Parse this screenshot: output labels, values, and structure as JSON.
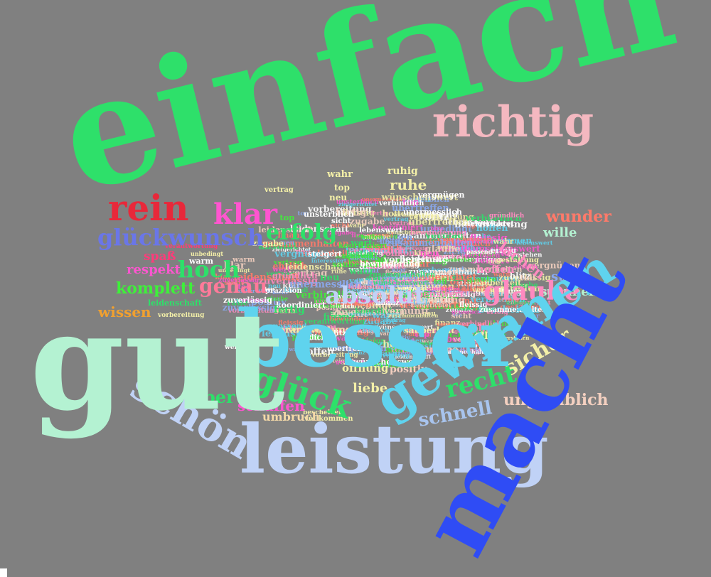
{
  "words": [
    {
      "text": "einfach",
      "color": "#2ee06a"
    },
    {
      "text": "gut",
      "color": "#b4f2d2"
    },
    {
      "text": "macht",
      "color": "#2f4cf5"
    },
    {
      "text": "leistung",
      "color": "#c0d2f6"
    },
    {
      "text": "besser",
      "color": "#5fd3ee"
    },
    {
      "text": "richtig",
      "color": "#f4b8c0"
    },
    {
      "text": "gewinnen",
      "color": "#5fd3ee"
    },
    {
      "text": "schön",
      "color": "#c0d2f6"
    },
    {
      "text": "glück",
      "color": "#2ee06a"
    },
    {
      "text": "rein",
      "color": "#e8283a"
    },
    {
      "text": "glückwunsch",
      "color": "#6a76e8"
    },
    {
      "text": "hoch",
      "color": "#2ee06a"
    },
    {
      "text": "genau",
      "color": "#ff7a9a"
    },
    {
      "text": "komplett",
      "color": "#3ef03a"
    },
    {
      "text": "respekt",
      "color": "#ff55d0"
    },
    {
      "text": "spaß",
      "color": "#ff3b7a"
    },
    {
      "text": "wissen",
      "color": "#f0a030"
    },
    {
      "text": "super",
      "color": "#2ee06a"
    },
    {
      "text": "schaffen",
      "color": "#ff55d0"
    },
    {
      "text": "umbruch",
      "color": "#f4d9a8"
    },
    {
      "text": "liebe",
      "color": "#f4f0a8"
    },
    {
      "text": "recht",
      "color": "#2ee06a"
    },
    {
      "text": "sicher",
      "color": "#f4f0a8"
    },
    {
      "text": "schnell",
      "color": "#a8c4ee"
    },
    {
      "text": "unglaublich",
      "color": "#f4d0c0"
    },
    {
      "text": "wunder",
      "color": "#ff7a6a"
    },
    {
      "text": "wille",
      "color": "#b4f2d2"
    },
    {
      "text": "lachen",
      "color": "#ff8ac0"
    },
    {
      "text": "stark",
      "color": "#8aaaf0"
    },
    {
      "text": "spannend",
      "color": "#b4f2d2"
    },
    {
      "text": "klar",
      "color": "#ff55d0"
    },
    {
      "text": "ruhig",
      "color": "#f4f0a8"
    },
    {
      "text": "ruhe",
      "color": "#f4f0a8"
    },
    {
      "text": "wahr",
      "color": "#f4f0a8"
    },
    {
      "text": "top",
      "color": "#f4f0a8"
    },
    {
      "text": "neu",
      "color": "#f4f0a8"
    },
    {
      "text": "vertrag",
      "color": "#f4f0a8"
    },
    {
      "text": "zuverlässig",
      "color": "#ffffff"
    },
    {
      "text": "leidenschaft",
      "color": "#2ee06a"
    },
    {
      "text": "vorbereitung",
      "color": "#f4f0a8"
    },
    {
      "text": "fertig",
      "color": "#2ee06a"
    },
    {
      "text": "zugabe",
      "color": "#f4f0a8"
    },
    {
      "text": "warm",
      "color": "#ffffff"
    },
    {
      "text": "verantwortung",
      "color": "#ff3b7a"
    },
    {
      "text": "unbedingt",
      "color": "#f4f0a8"
    },
    {
      "text": "öffnung",
      "color": "#f4f0a8"
    },
    {
      "text": "positiv",
      "color": "#f4d0c0"
    },
    {
      "text": "vollkommen",
      "color": "#f4f0a8"
    },
    {
      "text": "sauberkeit",
      "color": "#f4f0a8"
    },
    {
      "text": "hoffen",
      "color": "#ff8ac0"
    },
    {
      "text": "toll",
      "color": "#f4f0a8"
    },
    {
      "text": "vernunft",
      "color": "#f4f0a8"
    },
    {
      "text": "gestaltung",
      "color": "#f4f0a8"
    },
    {
      "text": "unermesslich",
      "color": "#ffffff"
    },
    {
      "text": "zielgerichtet",
      "color": "#ffffff"
    },
    {
      "text": "wünschenswert",
      "color": "#ffffff"
    },
    {
      "text": "koordiniert",
      "color": "#ffffff"
    },
    {
      "text": "präzision",
      "color": "#ffffff"
    },
    {
      "text": "bewunderung",
      "color": "#ffffff"
    },
    {
      "text": "steigert",
      "color": "#ffffff"
    },
    {
      "text": "unsterblich",
      "color": "#ffffff"
    },
    {
      "text": "interessiert",
      "color": "#2ee06a"
    },
    {
      "text": "finanz",
      "color": "#ffffff"
    },
    {
      "text": "sicht",
      "color": "#ffffff"
    },
    {
      "text": "lebenswert",
      "color": "#ffffff"
    },
    {
      "text": "zusammenhalten",
      "color": "#ffffff"
    },
    {
      "text": "fleissig",
      "color": "#ffffff"
    },
    {
      "text": "gründlich",
      "color": "#ff8ac0"
    },
    {
      "text": "verstehen",
      "color": "#f4f0a8"
    },
    {
      "text": "passend",
      "color": "#ffffff"
    },
    {
      "text": "verbindlich",
      "color": "#ffffff"
    },
    {
      "text": "übertreffen",
      "color": "#ffffff"
    },
    {
      "text": "bescheiden",
      "color": "#f4f0a8"
    },
    {
      "text": "vergnügen",
      "color": "#ffffff"
    },
    {
      "text": "wert",
      "color": "#ffffff"
    },
    {
      "text": "blitz",
      "color": "#ffffff"
    },
    {
      "text": "ehrlich",
      "color": "#ffffff"
    },
    {
      "text": "glaube",
      "color": "#ff8ac0"
    },
    {
      "text": "absolut",
      "color": "#c0d2f6"
    },
    {
      "text": "erfolg",
      "color": "#2ee06a"
    }
  ]
}
